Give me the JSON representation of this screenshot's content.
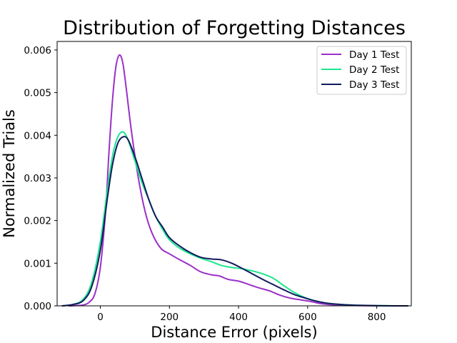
{
  "chart_data": {
    "type": "line",
    "title": "Distribution of Forgetting Distances",
    "xlabel": "Distance Error (pixels)",
    "ylabel": "Normalized Trials",
    "xlim": [
      -125,
      900
    ],
    "ylim": [
      0,
      0.0062
    ],
    "xticks": [
      0,
      200,
      400,
      600,
      800
    ],
    "yticks": [
      0.0,
      0.001,
      0.002,
      0.003,
      0.004,
      0.005,
      0.006
    ],
    "ytick_labels": [
      "0.000",
      "0.001",
      "0.002",
      "0.003",
      "0.004",
      "0.005",
      "0.006"
    ],
    "grid": false,
    "legend": "top-right",
    "series": [
      {
        "name": "Day 1 Test",
        "color": "#9b30c8",
        "points": [
          [
            -90,
            0.0
          ],
          [
            -50,
            2e-05
          ],
          [
            -30,
            0.0001
          ],
          [
            -15,
            0.0003
          ],
          [
            0,
            0.0009
          ],
          [
            15,
            0.0022
          ],
          [
            25,
            0.0036
          ],
          [
            35,
            0.0048
          ],
          [
            45,
            0.0056
          ],
          [
            55,
            0.00588
          ],
          [
            65,
            0.0057
          ],
          [
            75,
            0.0051
          ],
          [
            90,
            0.0041
          ],
          [
            110,
            0.003
          ],
          [
            130,
            0.0022
          ],
          [
            150,
            0.0017
          ],
          [
            175,
            0.00135
          ],
          [
            200,
            0.00122
          ],
          [
            230,
            0.00108
          ],
          [
            260,
            0.00095
          ],
          [
            290,
            0.0008
          ],
          [
            320,
            0.00073
          ],
          [
            345,
            0.0007
          ],
          [
            370,
            0.00062
          ],
          [
            400,
            0.00058
          ],
          [
            430,
            0.0005
          ],
          [
            460,
            0.00042
          ],
          [
            490,
            0.00035
          ],
          [
            520,
            0.00025
          ],
          [
            550,
            0.00018
          ],
          [
            580,
            0.00014
          ],
          [
            610,
            0.0001
          ],
          [
            640,
            5e-05
          ],
          [
            680,
            2e-05
          ],
          [
            720,
            1e-05
          ],
          [
            800,
            0.0
          ],
          [
            890,
            0.0
          ]
        ]
      },
      {
        "name": "Day 2 Test",
        "color": "#1de58f",
        "points": [
          [
            -110,
            0.0
          ],
          [
            -80,
            3e-05
          ],
          [
            -50,
            0.00015
          ],
          [
            -25,
            0.00055
          ],
          [
            0,
            0.0015
          ],
          [
            20,
            0.0027
          ],
          [
            35,
            0.0035
          ],
          [
            50,
            0.00395
          ],
          [
            65,
            0.00408
          ],
          [
            80,
            0.0039
          ],
          [
            100,
            0.0034
          ],
          [
            120,
            0.0029
          ],
          [
            140,
            0.0025
          ],
          [
            160,
            0.0021
          ],
          [
            180,
            0.0018
          ],
          [
            200,
            0.00155
          ],
          [
            230,
            0.00135
          ],
          [
            260,
            0.00122
          ],
          [
            290,
            0.00112
          ],
          [
            320,
            0.00104
          ],
          [
            350,
            0.00095
          ],
          [
            380,
            0.0009
          ],
          [
            410,
            0.00087
          ],
          [
            440,
            0.00082
          ],
          [
            470,
            0.00075
          ],
          [
            500,
            0.00065
          ],
          [
            530,
            0.00048
          ],
          [
            560,
            0.00032
          ],
          [
            590,
            0.0002
          ],
          [
            620,
            0.00012
          ],
          [
            650,
            7e-05
          ],
          [
            700,
            3e-05
          ],
          [
            760,
            1e-05
          ],
          [
            850,
            0.0
          ],
          [
            890,
            0.0
          ]
        ]
      },
      {
        "name": "Day 3 Test",
        "color": "#101a5e",
        "points": [
          [
            -110,
            0.0
          ],
          [
            -80,
            3e-05
          ],
          [
            -50,
            0.00012
          ],
          [
            -25,
            0.00045
          ],
          [
            0,
            0.0013
          ],
          [
            20,
            0.0025
          ],
          [
            35,
            0.0033
          ],
          [
            50,
            0.0038
          ],
          [
            65,
            0.00396
          ],
          [
            80,
            0.0039
          ],
          [
            100,
            0.0035
          ],
          [
            120,
            0.003
          ],
          [
            140,
            0.0025
          ],
          [
            160,
            0.0021
          ],
          [
            180,
            0.00185
          ],
          [
            200,
            0.0016
          ],
          [
            230,
            0.0014
          ],
          [
            260,
            0.00125
          ],
          [
            290,
            0.00114
          ],
          [
            320,
            0.0011
          ],
          [
            350,
            0.00108
          ],
          [
            380,
            0.001
          ],
          [
            410,
            0.00088
          ],
          [
            440,
            0.00075
          ],
          [
            470,
            0.00062
          ],
          [
            500,
            0.0005
          ],
          [
            530,
            0.00038
          ],
          [
            560,
            0.00027
          ],
          [
            590,
            0.00019
          ],
          [
            620,
            0.00012
          ],
          [
            650,
            7e-05
          ],
          [
            700,
            3e-05
          ],
          [
            760,
            1e-05
          ],
          [
            850,
            0.0
          ],
          [
            890,
            0.0
          ]
        ]
      }
    ]
  }
}
